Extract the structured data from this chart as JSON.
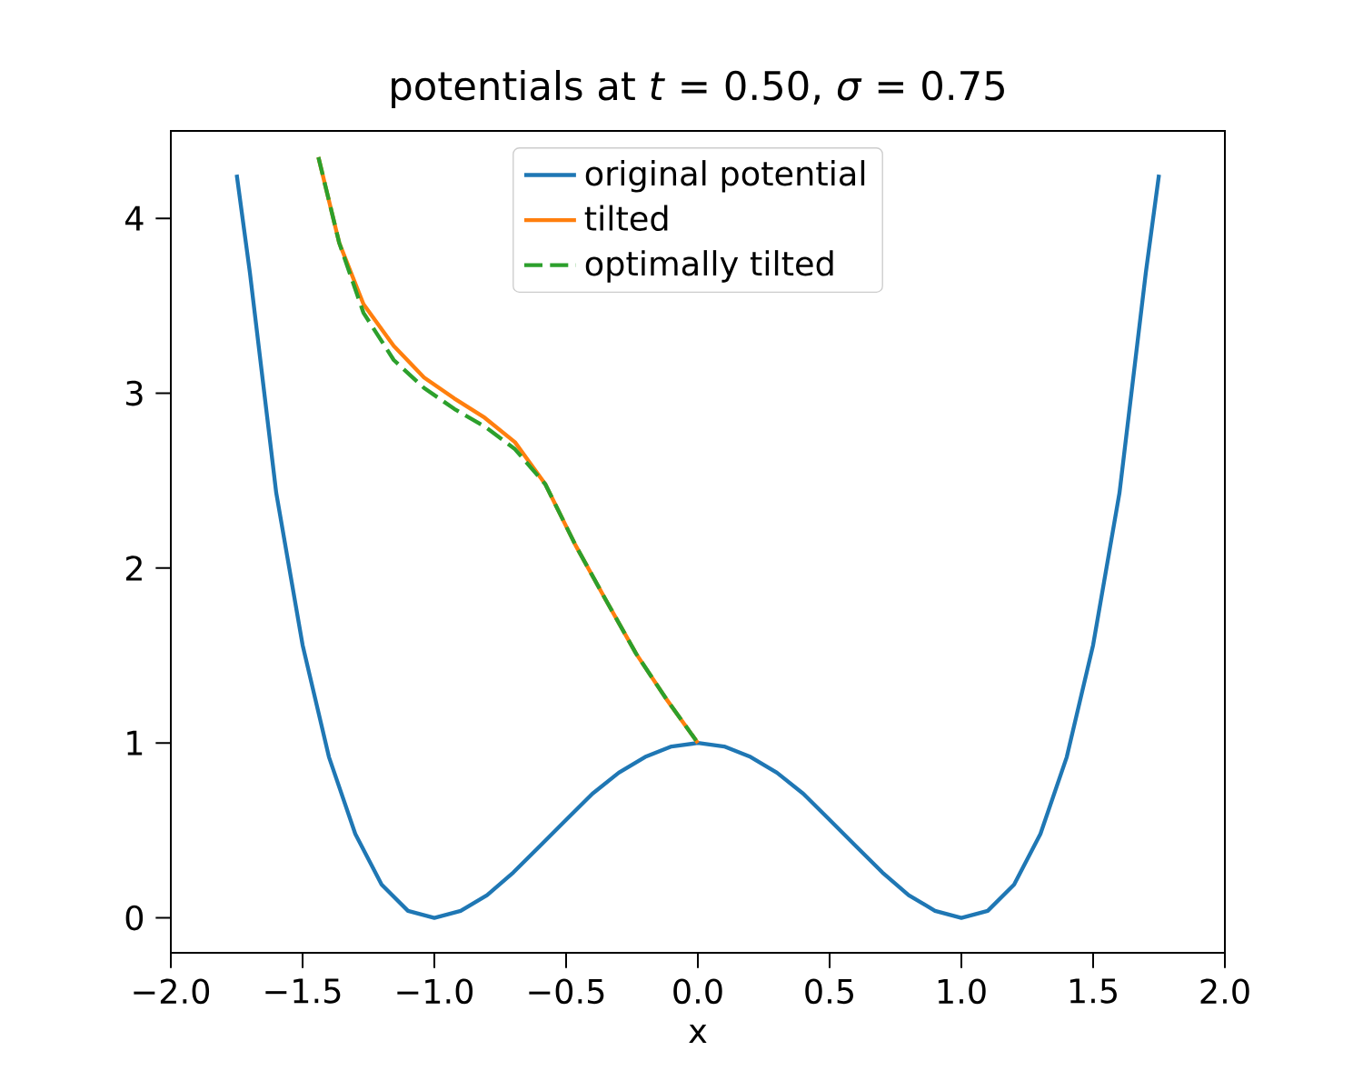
{
  "chart_data": {
    "type": "line",
    "title": "potentials at *t* = 0.50, *σ* = 0.75",
    "xlabel": "x",
    "xlim": [
      -2.0,
      2.0
    ],
    "ylim": [
      -0.2,
      4.5
    ],
    "xticks": [
      {
        "value": -2.0,
        "label": "−2.0"
      },
      {
        "value": -1.5,
        "label": "−1.5"
      },
      {
        "value": -1.0,
        "label": "−1.0"
      },
      {
        "value": -0.5,
        "label": "−0.5"
      },
      {
        "value": 0.0,
        "label": "0.0"
      },
      {
        "value": 0.5,
        "label": "0.5"
      },
      {
        "value": 1.0,
        "label": "1.0"
      },
      {
        "value": 1.5,
        "label": "1.5"
      },
      {
        "value": 2.0,
        "label": "2.0"
      }
    ],
    "yticks": [
      0,
      1,
      2,
      3,
      4
    ],
    "legend": "top",
    "grid": false,
    "series": [
      {
        "name": "original potential",
        "color": "#1f77b4",
        "line_style": "solid",
        "x": [
          -1.75,
          -1.7,
          -1.6,
          -1.5,
          -1.4,
          -1.3,
          -1.2,
          -1.1,
          -1.0,
          -0.9,
          -0.8,
          -0.7,
          -0.6,
          -0.5,
          -0.4,
          -0.3,
          -0.2,
          -0.1,
          0.0,
          0.1,
          0.2,
          0.3,
          0.4,
          0.5,
          0.6,
          0.7,
          0.8,
          0.9,
          1.0,
          1.1,
          1.2,
          1.3,
          1.4,
          1.5,
          1.6,
          1.7,
          1.75
        ],
        "values": [
          4.25,
          3.69,
          2.43,
          1.56,
          0.92,
          0.48,
          0.19,
          0.04,
          0.0,
          0.04,
          0.13,
          0.26,
          0.41,
          0.56,
          0.71,
          0.83,
          0.92,
          0.98,
          1.0,
          0.98,
          0.92,
          0.83,
          0.71,
          0.56,
          0.41,
          0.26,
          0.13,
          0.04,
          0.0,
          0.04,
          0.19,
          0.48,
          0.92,
          1.56,
          2.43,
          3.69,
          4.25
        ]
      },
      {
        "name": "tilted",
        "color": "#ff7f0e",
        "line_style": "solid",
        "x": [
          -1.44,
          -1.361,
          -1.269,
          -1.154,
          -1.039,
          -0.924,
          -0.809,
          -0.694,
          -0.579,
          -0.464,
          -0.35,
          -0.234,
          -0.119,
          0.0
        ],
        "values": [
          4.35,
          3.86,
          3.51,
          3.27,
          3.09,
          2.97,
          2.86,
          2.72,
          2.48,
          2.13,
          1.82,
          1.51,
          1.25,
          1.0
        ]
      },
      {
        "name": "optimally tilted",
        "color": "#2ca02c",
        "line_style": "dashed",
        "x": [
          -1.44,
          -1.361,
          -1.269,
          -1.154,
          -1.039,
          -0.924,
          -0.809,
          -0.694,
          -0.579,
          -0.464,
          -0.35,
          -0.234,
          -0.119,
          0.0
        ],
        "values": [
          4.35,
          3.86,
          3.46,
          3.19,
          3.03,
          2.91,
          2.81,
          2.68,
          2.48,
          2.13,
          1.82,
          1.51,
          1.25,
          1.0
        ]
      }
    ]
  }
}
